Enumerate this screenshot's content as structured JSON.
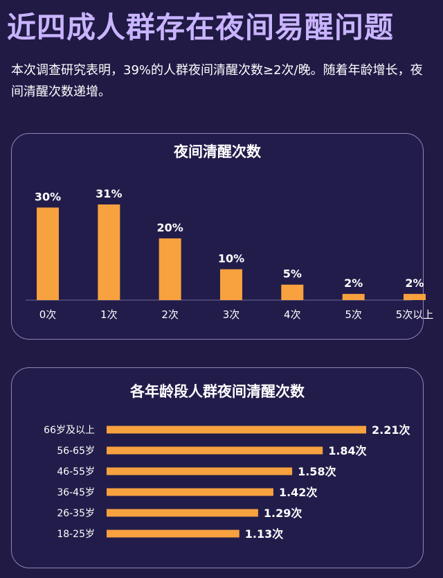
{
  "headline": "近四成人群存在夜间易醒问题",
  "intro": "本次调查研究表明，39%的人群夜间清醒次数≥2次/晚。随着年龄增长，夜间清醒次数递增。",
  "colors": {
    "bar": "#f7a13f",
    "background": "#201a45",
    "headline": "#c9b4ff",
    "panel_border": "#8e86b8"
  },
  "chart_data": [
    {
      "type": "bar",
      "orientation": "vertical",
      "title": "夜间清醒次数",
      "categories": [
        "0次",
        "1次",
        "2次",
        "3次",
        "4次",
        "5次",
        "5次以上"
      ],
      "values": [
        30,
        31,
        20,
        10,
        5,
        2,
        2
      ],
      "value_labels": [
        "30%",
        "31%",
        "20%",
        "10%",
        "5%",
        "2%",
        "2%"
      ],
      "unit": "%",
      "ylim": [
        0,
        31
      ],
      "grid": false,
      "legend": "none"
    },
    {
      "type": "bar",
      "orientation": "horizontal",
      "title": "各年龄段人群夜间清醒次数",
      "categories": [
        "66岁及以上",
        "56-65岁",
        "46-55岁",
        "36-45岁",
        "26-35岁",
        "18-25岁"
      ],
      "values": [
        2.21,
        1.84,
        1.58,
        1.42,
        1.29,
        1.13
      ],
      "value_labels": [
        "2.21次",
        "1.84次",
        "1.58次",
        "1.42次",
        "1.29次",
        "1.13次"
      ],
      "unit": "次",
      "xlim": [
        0,
        2.21
      ],
      "grid": false,
      "legend": "none"
    }
  ]
}
